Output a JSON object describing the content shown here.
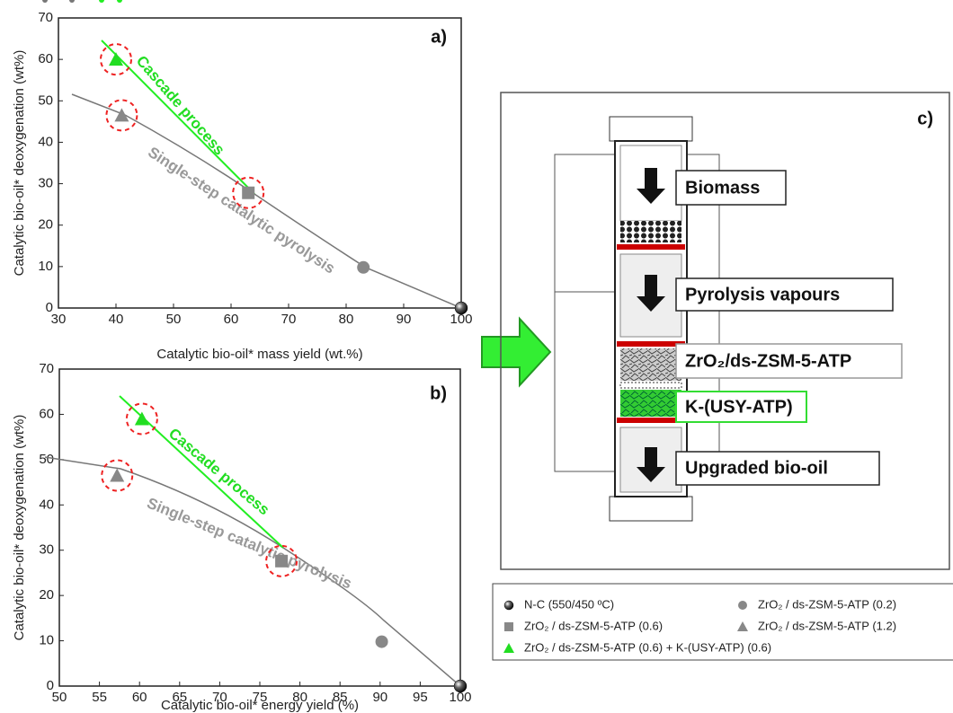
{
  "chart_data": [
    {
      "type": "scatter",
      "panel_label": "a)",
      "x_label": "Catalytic bio-oil* mass yield (wt.%)",
      "y_label": "Catalytic bio-oil* deoxygenation (wt%)",
      "xlim": [
        30,
        100
      ],
      "xticks": [
        30,
        40,
        50,
        60,
        70,
        80,
        90,
        100
      ],
      "ylim": [
        0,
        70
      ],
      "yticks": [
        0,
        10,
        20,
        30,
        40,
        50,
        60,
        70
      ],
      "annotations": [
        "Cascade process",
        "Single-step catalytic pyrolysis"
      ],
      "series": [
        {
          "name": "N-C (550/450 ºC)",
          "color": "#111111",
          "marker": "sphere",
          "x": [
            100
          ],
          "values": [
            0
          ]
        },
        {
          "name": "ZrO₂ / ds-ZSM-5-ATP (0.2)",
          "color": "#888888",
          "marker": "circle",
          "x": [
            83
          ],
          "values": [
            9.8
          ]
        },
        {
          "name": "ZrO₂ / ds-ZSM-5-ATP (0.6)",
          "color": "#888888",
          "marker": "square",
          "x": [
            63
          ],
          "values": [
            27.8
          ]
        },
        {
          "name": "ZrO₂ / ds-ZSM-5-ATP (1.2)",
          "color": "#888888",
          "marker": "triangle",
          "x": [
            41
          ],
          "values": [
            46.5
          ]
        },
        {
          "name": "ZrO₂ / ds-ZSM-5-ATP (0.6) + K-(USY-ATP) (0.6)",
          "color": "#22dd22",
          "marker": "triangle",
          "x": [
            40
          ],
          "values": [
            60
          ]
        }
      ]
    },
    {
      "type": "scatter",
      "panel_label": "b)",
      "x_label": "Catalytic bio-oil* energy yield (%)",
      "y_label": "Catalytic bio-oil* deoxygenation (wt%)",
      "xlim": [
        50,
        100
      ],
      "xticks": [
        50,
        55,
        60,
        65,
        70,
        75,
        80,
        85,
        90,
        95,
        100
      ],
      "ylim": [
        0,
        70
      ],
      "yticks": [
        0,
        10,
        20,
        30,
        40,
        50,
        60,
        70
      ],
      "annotations": [
        "Cascade process",
        "Single-step catalytic pyrolysis"
      ],
      "series": [
        {
          "color": "#111111",
          "marker": "sphere",
          "x": [
            100
          ],
          "values": [
            0
          ]
        },
        {
          "color": "#888888",
          "marker": "circle",
          "x": [
            90.2
          ],
          "values": [
            9.8
          ]
        },
        {
          "color": "#888888",
          "marker": "square",
          "x": [
            77.7
          ],
          "values": [
            27.6
          ]
        },
        {
          "color": "#888888",
          "marker": "triangle",
          "x": [
            57.2
          ],
          "values": [
            46.5
          ]
        },
        {
          "color": "#22dd22",
          "marker": "triangle",
          "x": [
            60.3
          ],
          "values": [
            59
          ]
        }
      ]
    }
  ],
  "diagram": {
    "panel_label": "c)",
    "labels": [
      "Biomass",
      "Pyrolysis vapours",
      "ZrO₂/ds-ZSM-5-ATP",
      "K-(USY-ATP)",
      "Upgraded bio-oil"
    ]
  }
}
